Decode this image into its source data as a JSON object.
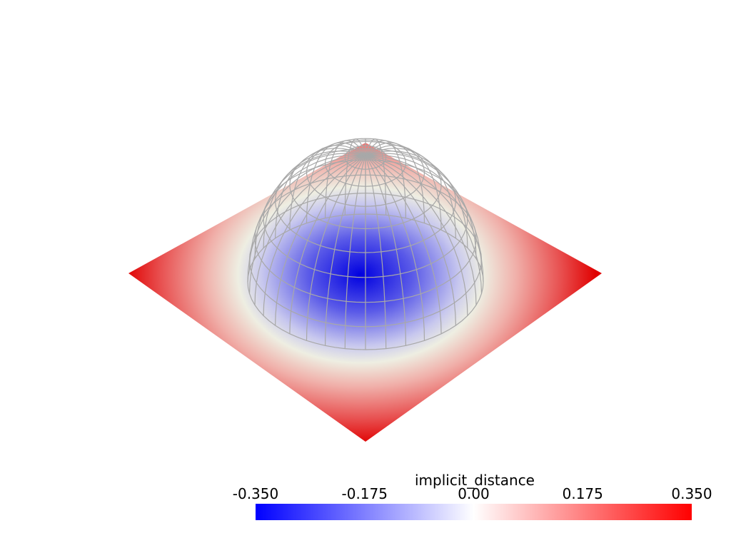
{
  "scalar_bar": {
    "title": "implicit_distance",
    "clim": [
      -0.35,
      0.35
    ],
    "ticks": [
      {
        "value": -0.35,
        "label": "-0.350"
      },
      {
        "value": -0.175,
        "label": "-0.175"
      },
      {
        "value": 0,
        "label": "0.00"
      },
      {
        "value": 0.175,
        "label": "0.175"
      },
      {
        "value": 0.35,
        "label": "0.350"
      }
    ],
    "colors": [
      "#0000ff",
      "#ffffff",
      "#ff0000"
    ]
  }
}
